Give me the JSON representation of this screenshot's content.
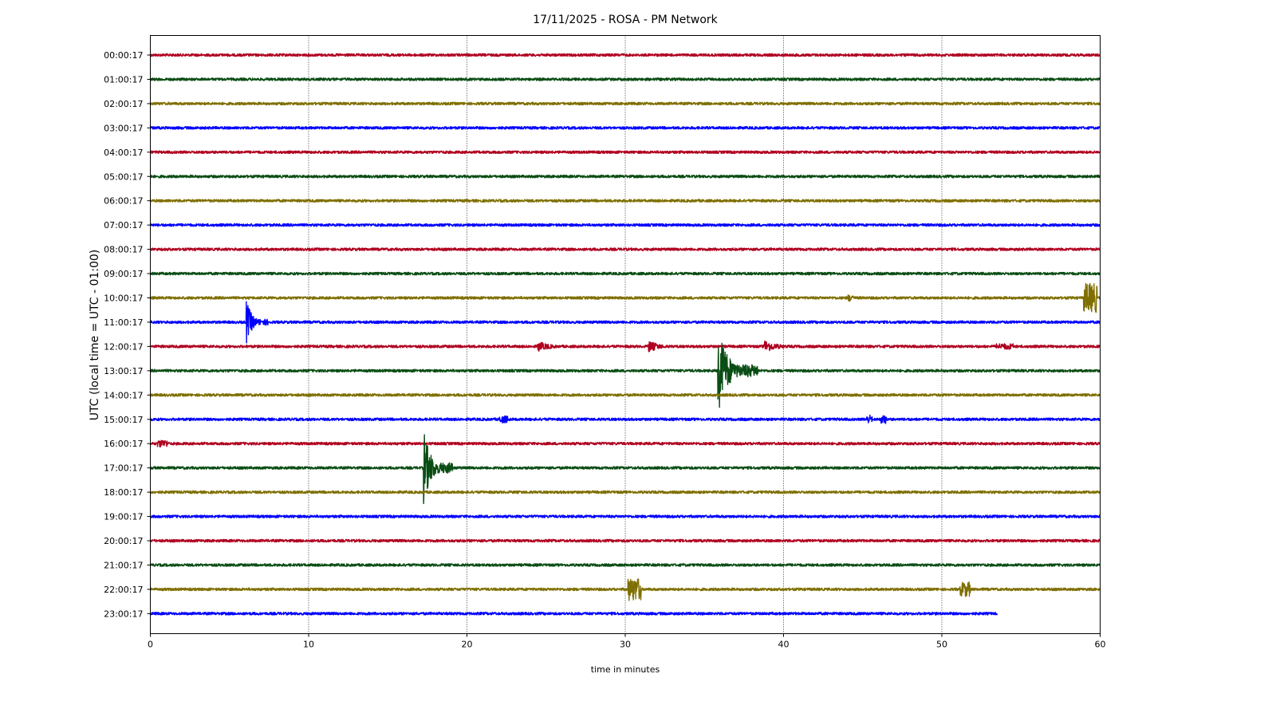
{
  "chart_data": {
    "type": "line",
    "title": "17/11/2025 - ROSA - PM Network",
    "xlabel": "time in minutes",
    "ylabel": "UTC (local time = UTC - 01:00)",
    "xlim": [
      0,
      60
    ],
    "x_ticks": [
      "0",
      "10",
      "20",
      "30",
      "40",
      "50",
      "60"
    ],
    "grid": "vertical dotted lines at x ticks",
    "row_labels": [
      "00:00:17",
      "01:00:17",
      "02:00:17",
      "03:00:17",
      "04:00:17",
      "05:00:17",
      "06:00:17",
      "07:00:17",
      "08:00:17",
      "09:00:17",
      "10:00:17",
      "11:00:17",
      "12:00:17",
      "13:00:17",
      "14:00:17",
      "15:00:17",
      "16:00:17",
      "17:00:17",
      "18:00:17",
      "19:00:17",
      "20:00:17",
      "21:00:17",
      "22:00:17",
      "23:00:17"
    ],
    "row_colors": [
      "#b00020",
      "#0a4d14",
      "#7f6f00",
      "#0000ff"
    ],
    "traces": [
      {
        "row": 0,
        "end_minute": 60,
        "events": []
      },
      {
        "row": 1,
        "end_minute": 60,
        "events": []
      },
      {
        "row": 2,
        "end_minute": 60,
        "events": []
      },
      {
        "row": 3,
        "end_minute": 60,
        "events": []
      },
      {
        "row": 4,
        "end_minute": 60,
        "events": []
      },
      {
        "row": 5,
        "end_minute": 60,
        "events": []
      },
      {
        "row": 6,
        "end_minute": 60,
        "events": []
      },
      {
        "row": 7,
        "end_minute": 60,
        "events": []
      },
      {
        "row": 8,
        "end_minute": 60,
        "events": []
      },
      {
        "row": 9,
        "end_minute": 60,
        "events": []
      },
      {
        "row": 10,
        "end_minute": 60,
        "events": [
          {
            "minute": 44.1,
            "amp": 0.25,
            "duration": 0.3
          },
          {
            "minute": 59.0,
            "amp": 1.0,
            "duration": 0.8
          }
        ]
      },
      {
        "row": 11,
        "end_minute": 60,
        "events": [
          {
            "minute": 6.1,
            "amp": 1.4,
            "duration": 1.4
          }
        ]
      },
      {
        "row": 12,
        "end_minute": 60,
        "events": [
          {
            "minute": 24.5,
            "amp": 0.35,
            "duration": 3.5
          },
          {
            "minute": 31.5,
            "amp": 0.4,
            "duration": 3.0
          },
          {
            "minute": 38.8,
            "amp": 0.45,
            "duration": 3.4
          },
          {
            "minute": 53.5,
            "amp": 0.2,
            "duration": 1.0
          }
        ]
      },
      {
        "row": 13,
        "end_minute": 60,
        "events": [
          {
            "minute": 35.9,
            "amp": 2.8,
            "duration": 2.5
          }
        ]
      },
      {
        "row": 14,
        "end_minute": 60,
        "events": []
      },
      {
        "row": 15,
        "end_minute": 60,
        "events": [
          {
            "minute": 22.1,
            "amp": 0.25,
            "duration": 0.5
          },
          {
            "minute": 45.3,
            "amp": 0.3,
            "duration": 0.3
          },
          {
            "minute": 46.2,
            "amp": 0.3,
            "duration": 0.3
          }
        ]
      },
      {
        "row": 16,
        "end_minute": 60,
        "events": [
          {
            "minute": 0.5,
            "amp": 0.25,
            "duration": 0.6
          }
        ]
      },
      {
        "row": 17,
        "end_minute": 60,
        "events": [
          {
            "minute": 17.3,
            "amp": 2.4,
            "duration": 1.8
          }
        ]
      },
      {
        "row": 18,
        "end_minute": 60,
        "events": []
      },
      {
        "row": 19,
        "end_minute": 60,
        "events": []
      },
      {
        "row": 20,
        "end_minute": 60,
        "events": []
      },
      {
        "row": 21,
        "end_minute": 60,
        "events": []
      },
      {
        "row": 22,
        "end_minute": 60,
        "events": [
          {
            "minute": 30.2,
            "amp": 0.8,
            "duration": 0.8
          },
          {
            "minute": 51.2,
            "amp": 0.5,
            "duration": 0.6
          }
        ]
      },
      {
        "row": 23,
        "end_minute": 53.5,
        "events": []
      }
    ]
  }
}
